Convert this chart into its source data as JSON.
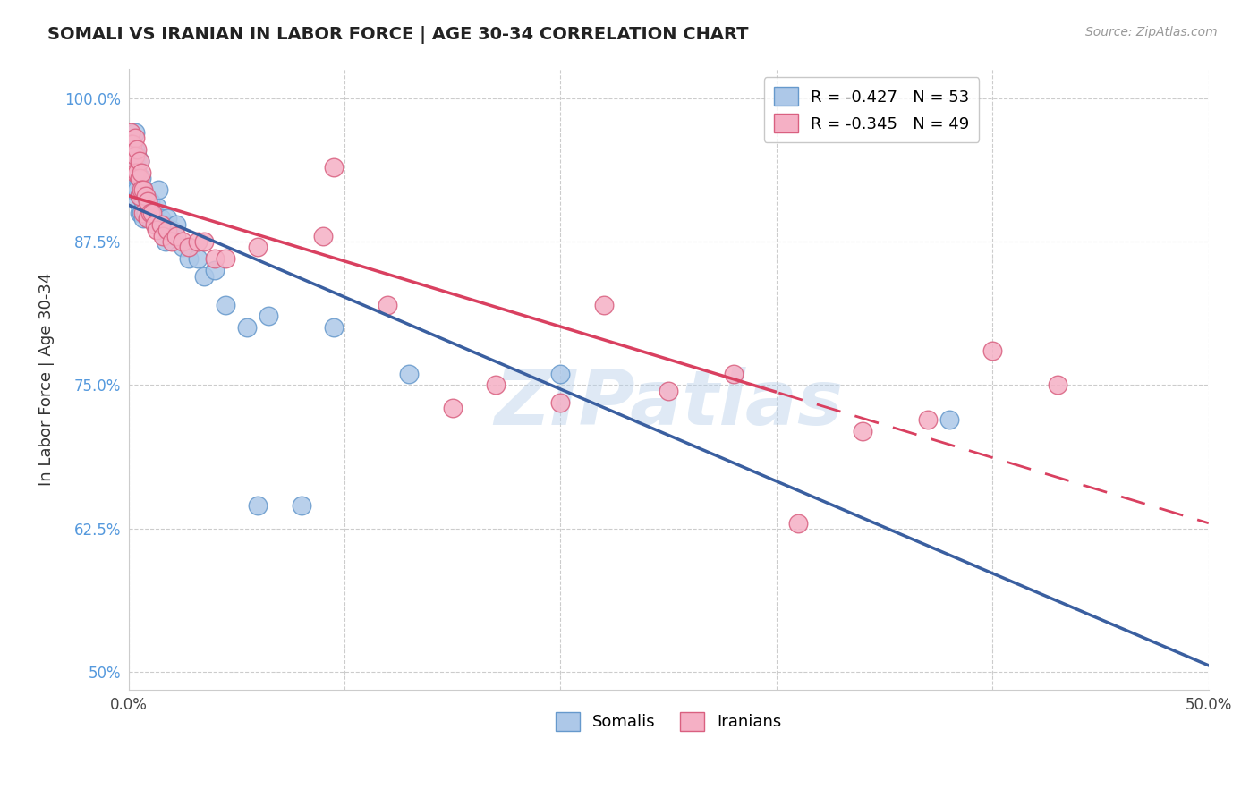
{
  "title": "SOMALI VS IRANIAN IN LABOR FORCE | AGE 30-34 CORRELATION CHART",
  "source": "Source: ZipAtlas.com",
  "ylabel": "In Labor Force | Age 30-34",
  "xlim": [
    0.0,
    0.5
  ],
  "ylim": [
    0.485,
    1.025
  ],
  "xticks": [
    0.0,
    0.1,
    0.2,
    0.3,
    0.4,
    0.5
  ],
  "xticklabels": [
    "0.0%",
    "",
    "",
    "",
    "",
    "50.0%"
  ],
  "yticks": [
    0.5,
    0.625,
    0.75,
    0.875,
    1.0
  ],
  "yticklabels": [
    "50%",
    "62.5%",
    "75.0%",
    "87.5%",
    "100.0%"
  ],
  "legend_R_labels": [
    "R = -0.427   N = 53",
    "R = -0.345   N = 49"
  ],
  "legend_bottom_labels": [
    "Somalis",
    "Iranians"
  ],
  "somali_face_color": "#adc8e8",
  "somali_edge_color": "#6699cc",
  "iranian_face_color": "#f5b0c5",
  "iranian_edge_color": "#d96080",
  "trendline_somali_color": "#3a5fa0",
  "trendline_iranian_color": "#d94060",
  "watermark_text": "ZIPatlas",
  "watermark_color": "#b8d0ea",
  "grid_color": "#cccccc",
  "background_color": "#ffffff",
  "title_color": "#222222",
  "source_color": "#999999",
  "ytick_color": "#5599dd",
  "somali_x": [
    0.001,
    0.001,
    0.002,
    0.002,
    0.002,
    0.003,
    0.003,
    0.003,
    0.003,
    0.004,
    0.004,
    0.004,
    0.004,
    0.005,
    0.005,
    0.005,
    0.005,
    0.006,
    0.006,
    0.006,
    0.007,
    0.007,
    0.007,
    0.008,
    0.008,
    0.009,
    0.009,
    0.01,
    0.01,
    0.011,
    0.012,
    0.013,
    0.014,
    0.015,
    0.016,
    0.017,
    0.018,
    0.02,
    0.022,
    0.025,
    0.028,
    0.032,
    0.035,
    0.04,
    0.045,
    0.055,
    0.06,
    0.065,
    0.08,
    0.095,
    0.13,
    0.2,
    0.38
  ],
  "somali_y": [
    0.96,
    0.94,
    0.96,
    0.94,
    0.92,
    0.97,
    0.955,
    0.935,
    0.92,
    0.95,
    0.94,
    0.92,
    0.91,
    0.945,
    0.93,
    0.915,
    0.9,
    0.93,
    0.915,
    0.9,
    0.92,
    0.91,
    0.895,
    0.915,
    0.9,
    0.91,
    0.895,
    0.91,
    0.895,
    0.9,
    0.895,
    0.905,
    0.92,
    0.895,
    0.89,
    0.875,
    0.895,
    0.885,
    0.89,
    0.87,
    0.86,
    0.86,
    0.845,
    0.85,
    0.82,
    0.8,
    0.645,
    0.81,
    0.645,
    0.8,
    0.76,
    0.76,
    0.72
  ],
  "iranian_x": [
    0.001,
    0.001,
    0.002,
    0.002,
    0.003,
    0.003,
    0.003,
    0.004,
    0.004,
    0.005,
    0.005,
    0.005,
    0.006,
    0.006,
    0.007,
    0.007,
    0.008,
    0.009,
    0.009,
    0.01,
    0.011,
    0.012,
    0.013,
    0.015,
    0.016,
    0.018,
    0.02,
    0.022,
    0.025,
    0.028,
    0.032,
    0.035,
    0.04,
    0.045,
    0.06,
    0.09,
    0.095,
    0.12,
    0.15,
    0.17,
    0.2,
    0.22,
    0.25,
    0.28,
    0.31,
    0.34,
    0.37,
    0.4,
    0.43
  ],
  "iranian_y": [
    0.97,
    0.96,
    0.96,
    0.945,
    0.965,
    0.95,
    0.935,
    0.955,
    0.935,
    0.945,
    0.93,
    0.915,
    0.935,
    0.92,
    0.92,
    0.9,
    0.915,
    0.91,
    0.895,
    0.9,
    0.9,
    0.89,
    0.885,
    0.89,
    0.88,
    0.885,
    0.875,
    0.88,
    0.875,
    0.87,
    0.875,
    0.875,
    0.86,
    0.86,
    0.87,
    0.88,
    0.94,
    0.82,
    0.73,
    0.75,
    0.735,
    0.82,
    0.745,
    0.76,
    0.63,
    0.71,
    0.72,
    0.78,
    0.75
  ]
}
